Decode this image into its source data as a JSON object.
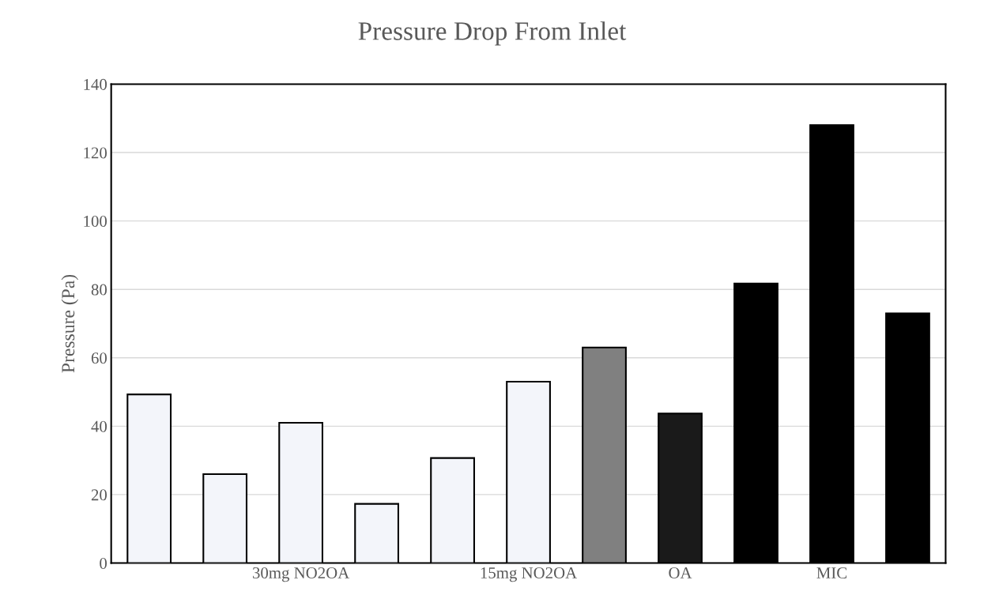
{
  "chart_data": {
    "type": "bar",
    "title": "Pressure Drop From Inlet",
    "ylabel": "Pressure (Pa)",
    "categories": [
      null,
      null,
      "30mg NO2OA",
      null,
      null,
      "15mg NO2OA",
      null,
      "OA",
      null,
      "MIC",
      null
    ],
    "values": [
      49.3,
      26,
      41,
      17.3,
      30.7,
      53,
      63,
      43.7,
      81.7,
      128,
      73
    ],
    "colors": [
      "#f3f5fa",
      "#f3f5fa",
      "#f3f5fa",
      "#f3f5fa",
      "#f3f5fa",
      "#f3f5fa",
      "#808080",
      "#1a1a1a",
      "#000000",
      "#000000",
      "#000000"
    ],
    "ylim": [
      0,
      140
    ],
    "yticks": [
      0,
      20,
      40,
      60,
      80,
      100,
      120,
      140
    ],
    "grid": "y"
  }
}
